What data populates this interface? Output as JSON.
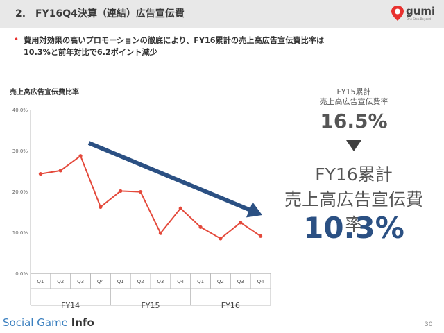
{
  "header": {
    "title": "2.　FY16Q4決算（連結）広告宣伝費",
    "logo_word": "gumi",
    "logo_tagline": "One Step Beyond"
  },
  "bullet": {
    "line1": "費用対効果の高いプロモーションの徹底により、FY16累計の売上高広告宣伝費比率は",
    "line2": "10.3%と前年対比で6.2ポイント減少"
  },
  "chart_title": "売上高広告宣伝費比率",
  "chart_data": {
    "type": "line",
    "title": "売上高広告宣伝費比率",
    "categories": [
      "Q1",
      "Q2",
      "Q3",
      "Q4",
      "Q1",
      "Q2",
      "Q3",
      "Q4",
      "Q1",
      "Q2",
      "Q3",
      "Q4"
    ],
    "groups": [
      "FY14",
      "FY15",
      "FY16"
    ],
    "series": [
      {
        "values": [
          24.3,
          25.1,
          28.7,
          16.2,
          20.1,
          19.9,
          9.8,
          15.9,
          11.3,
          8.5,
          12.4,
          9.1
        ]
      }
    ],
    "ylim": [
      0,
      40
    ],
    "yticks": [
      "0.0%",
      "10.0%",
      "20.0%",
      "30.0%",
      "40.0%"
    ],
    "grid": false,
    "series_color": "#e4493b",
    "trend_arrow_color": "#2b5083"
  },
  "fy15": {
    "label1": "FY15累計",
    "label2": "売上高広告宣伝費率",
    "value": "16.5%"
  },
  "fy16": {
    "label1": "FY16累計",
    "label2": "売上高広告宣伝費率",
    "value": "10.3%"
  },
  "footer": {
    "brand_a": "Social Game",
    "brand_b": "Info",
    "page": "30"
  }
}
